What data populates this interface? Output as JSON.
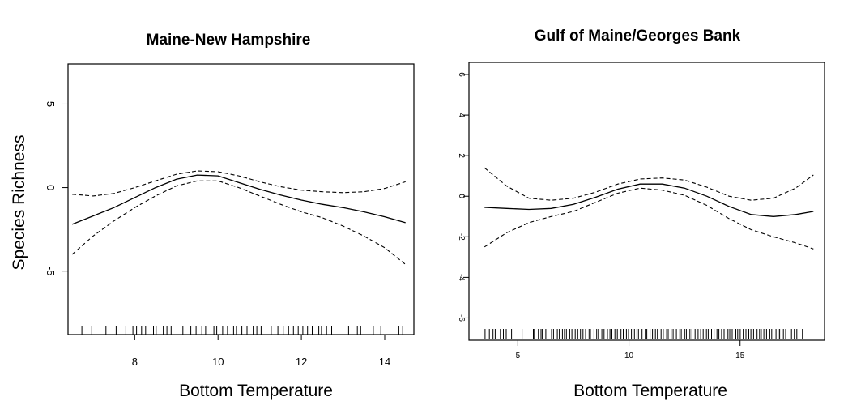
{
  "chart_data": [
    {
      "type": "line",
      "title": "Maine-New Hampshire",
      "xlabel": "Bottom Temperature",
      "ylabel": "Species Richness",
      "xlim": [
        6.4,
        14.7
      ],
      "ylim": [
        -8.8,
        7.4
      ],
      "xticks": [
        8,
        10,
        12,
        14
      ],
      "yticks": [
        -5,
        0,
        5
      ],
      "xtick_labels": [
        "8",
        "10",
        "12",
        "14"
      ],
      "ytick_labels": [
        "-5",
        "0",
        "5"
      ],
      "ytick_rotated": true,
      "series": [
        {
          "role": "fit",
          "style": "solid",
          "x": [
            6.5,
            7.0,
            7.5,
            8.0,
            8.5,
            9.0,
            9.5,
            10.0,
            10.5,
            11.0,
            11.5,
            12.0,
            12.5,
            13.0,
            13.5,
            14.0,
            14.5
          ],
          "values": [
            -2.2,
            -1.7,
            -1.2,
            -0.6,
            0.0,
            0.5,
            0.75,
            0.7,
            0.3,
            -0.1,
            -0.45,
            -0.75,
            -1.0,
            -1.2,
            -1.45,
            -1.75,
            -2.1
          ]
        },
        {
          "role": "upper",
          "style": "dashed",
          "x": [
            6.5,
            7.0,
            7.5,
            8.0,
            8.5,
            9.0,
            9.5,
            10.0,
            10.5,
            11.0,
            11.5,
            12.0,
            12.5,
            13.0,
            13.5,
            14.0,
            14.5
          ],
          "values": [
            -0.4,
            -0.5,
            -0.35,
            0.0,
            0.4,
            0.8,
            1.0,
            0.95,
            0.7,
            0.35,
            0.05,
            -0.15,
            -0.25,
            -0.3,
            -0.25,
            -0.05,
            0.35
          ]
        },
        {
          "role": "lower",
          "style": "dashed",
          "x": [
            6.5,
            7.0,
            7.5,
            8.0,
            8.5,
            9.0,
            9.5,
            10.0,
            10.5,
            11.0,
            11.5,
            12.0,
            12.5,
            13.0,
            13.5,
            14.0,
            14.5
          ],
          "values": [
            -4.0,
            -2.9,
            -2.0,
            -1.2,
            -0.5,
            0.1,
            0.4,
            0.4,
            0.0,
            -0.5,
            -1.0,
            -1.45,
            -1.8,
            -2.3,
            -2.9,
            -3.6,
            -4.6
          ]
        }
      ],
      "rug": {
        "x_min": 6.5,
        "x_max": 14.5,
        "dense_ranges": [
          [
            7.9,
            9.0
          ],
          [
            9.3,
            10.8
          ],
          [
            11.4,
            12.7
          ]
        ]
      }
    },
    {
      "type": "line",
      "title": "Gulf of Maine/Georges Bank",
      "xlabel": "Bottom Temperature",
      "ylabel": "",
      "xlim": [
        2.8,
        18.8
      ],
      "ylim": [
        -7.1,
        6.6
      ],
      "xticks": [
        5,
        10,
        15
      ],
      "yticks": [
        -6,
        -4,
        -2,
        0,
        2,
        4,
        6
      ],
      "xtick_labels": [
        "5",
        "10",
        "15"
      ],
      "ytick_labels": [
        "-6",
        "-4",
        "-2",
        "0",
        "2",
        "4",
        "6"
      ],
      "ytick_rotated": true,
      "series": [
        {
          "role": "fit",
          "style": "solid",
          "x": [
            3.5,
            4.5,
            5.5,
            6.5,
            7.5,
            8.5,
            9.5,
            10.5,
            11.5,
            12.5,
            13.5,
            14.5,
            15.5,
            16.5,
            17.5,
            18.3
          ],
          "values": [
            -0.55,
            -0.6,
            -0.65,
            -0.6,
            -0.4,
            -0.05,
            0.35,
            0.6,
            0.6,
            0.4,
            0.0,
            -0.5,
            -0.9,
            -1.0,
            -0.9,
            -0.75
          ]
        },
        {
          "role": "upper",
          "style": "dashed",
          "x": [
            3.5,
            4.5,
            5.5,
            6.5,
            7.5,
            8.5,
            9.5,
            10.5,
            11.5,
            12.5,
            13.5,
            14.5,
            15.5,
            16.5,
            17.5,
            18.3
          ],
          "values": [
            1.4,
            0.5,
            -0.1,
            -0.2,
            -0.1,
            0.2,
            0.6,
            0.85,
            0.9,
            0.8,
            0.45,
            0.0,
            -0.2,
            -0.1,
            0.4,
            1.05
          ]
        },
        {
          "role": "lower",
          "style": "dashed",
          "x": [
            3.5,
            4.5,
            5.5,
            6.5,
            7.5,
            8.5,
            9.5,
            10.5,
            11.5,
            12.5,
            13.5,
            14.5,
            15.5,
            16.5,
            17.5,
            18.3
          ],
          "values": [
            -2.5,
            -1.8,
            -1.3,
            -1.0,
            -0.75,
            -0.3,
            0.15,
            0.4,
            0.3,
            0.05,
            -0.45,
            -1.1,
            -1.65,
            -2.0,
            -2.3,
            -2.6
          ]
        }
      ],
      "rug": {
        "x_min": 3.5,
        "x_max": 18.3,
        "dense_ranges": [
          [
            5.8,
            17.0
          ]
        ]
      }
    }
  ]
}
